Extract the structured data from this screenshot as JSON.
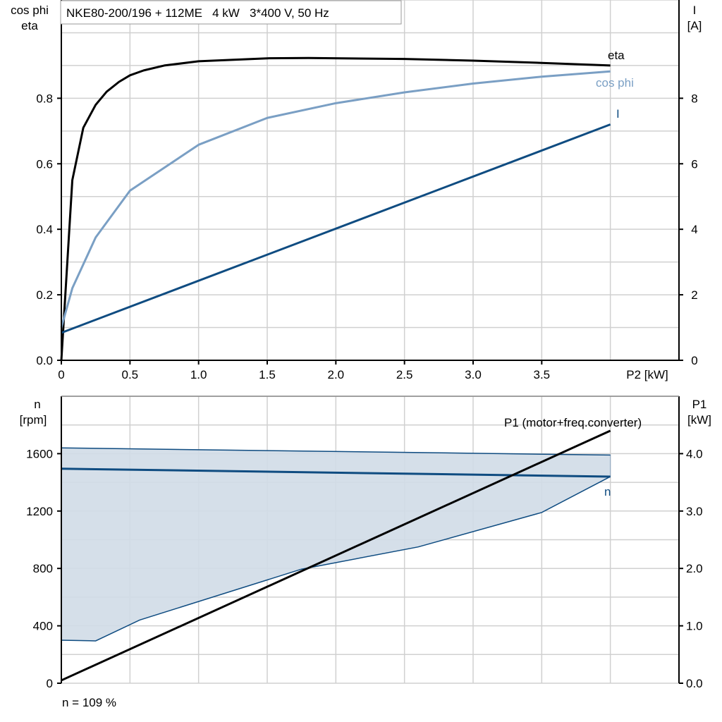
{
  "chart_data": [
    {
      "type": "line",
      "title": "NKE80-200/196 + 112ME   4 kW   3*400 V, 50 Hz",
      "xlabel": "P2 [kW]",
      "ylabel_left": [
        "cos phi",
        "eta"
      ],
      "ylabel_right": [
        "I",
        "[A]"
      ],
      "xlim": [
        0,
        4.5
      ],
      "ylim_left": [
        0,
        1.1
      ],
      "ylim_right": [
        0,
        11
      ],
      "x_ticks": [
        "0",
        "0.5",
        "1.0",
        "1.5",
        "2.0",
        "2.5",
        "3.0",
        "3.5"
      ],
      "y_left_ticks": [
        "0.0",
        "0.2",
        "0.4",
        "0.6",
        "0.8"
      ],
      "y_right_ticks": [
        "0",
        "2",
        "4",
        "6",
        "8"
      ],
      "grid": true,
      "series": [
        {
          "name": "eta",
          "axis": "left",
          "color": "#000000",
          "x": [
            0,
            0.08,
            0.16,
            0.25,
            0.33,
            0.42,
            0.5,
            0.6,
            0.75,
            1.0,
            1.5,
            1.8,
            2.5,
            3.0,
            3.5,
            4.0
          ],
          "y": [
            0,
            0.55,
            0.71,
            0.78,
            0.82,
            0.85,
            0.87,
            0.885,
            0.9,
            0.913,
            0.922,
            0.923,
            0.92,
            0.915,
            0.908,
            0.9
          ]
        },
        {
          "name": "cos phi",
          "axis": "left",
          "color": "#7a9fc4",
          "x": [
            0,
            0.08,
            0.25,
            0.5,
            1.0,
            1.5,
            2.0,
            2.5,
            3.0,
            3.5,
            4.0
          ],
          "y": [
            0.1,
            0.22,
            0.375,
            0.518,
            0.658,
            0.74,
            0.785,
            0.818,
            0.845,
            0.866,
            0.882
          ]
        },
        {
          "name": "I",
          "axis": "right",
          "color": "#0f4c81",
          "x": [
            0,
            4.0
          ],
          "y": [
            0.84,
            7.2
          ]
        }
      ]
    },
    {
      "type": "line",
      "ylabel_left": [
        "n",
        "[rpm]"
      ],
      "ylabel_right": [
        "P1",
        "[kW]"
      ],
      "xlim": [
        0,
        4.5
      ],
      "ylim_left": [
        0,
        2000
      ],
      "ylim_right": [
        0,
        5
      ],
      "y_left_ticks": [
        "0",
        "400",
        "800",
        "1200",
        "1600"
      ],
      "y_right_ticks": [
        "0.0",
        "1.0",
        "2.0",
        "3.0",
        "4.0"
      ],
      "grid": true,
      "annotation": "n = 109 %",
      "speed_range": {
        "color": "#d0dce7",
        "upper": {
          "x": [
            0,
            4.0
          ],
          "y": [
            1640,
            1590
          ]
        },
        "lower": {
          "x": [
            0,
            0.25,
            0.57,
            1.5,
            1.75,
            2.6,
            3.5,
            4.0
          ],
          "y": [
            300,
            295,
            440,
            720,
            795,
            950,
            1190,
            1440
          ]
        }
      },
      "series": [
        {
          "name": "n",
          "axis": "left",
          "color": "#0f4c81",
          "x": [
            0,
            4.0
          ],
          "y": [
            1495,
            1440
          ]
        },
        {
          "name": "P1 (motor+freq.converter)",
          "axis": "right",
          "color": "#000000",
          "x": [
            0,
            4.0
          ],
          "y": [
            0.05,
            4.4
          ]
        }
      ]
    }
  ]
}
